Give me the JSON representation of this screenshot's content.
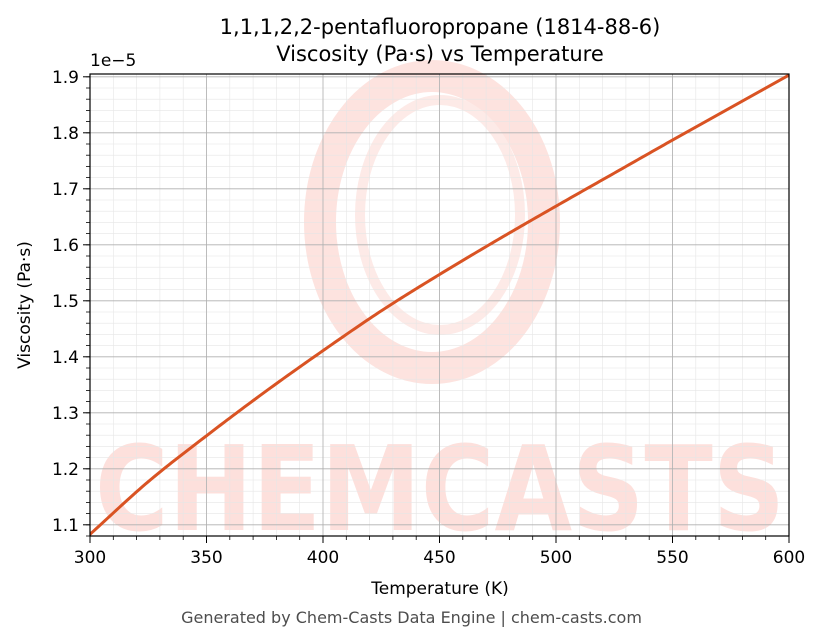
{
  "chart_data": {
    "type": "line",
    "title": "1,1,1,2,2-pentafluoropropane (1814-88-6)",
    "subtitle": "Viscosity (Pa·s) vs Temperature",
    "xlabel": "Temperature (K)",
    "ylabel": "Viscosity (Pa·s)",
    "y_offset_label": "1e−5",
    "xlim": [
      300,
      600
    ],
    "ylim": [
      1.08,
      1.905
    ],
    "x_ticks": [
      300,
      350,
      400,
      450,
      500,
      550,
      600
    ],
    "x_tick_labels": [
      "300",
      "350",
      "400",
      "450",
      "500",
      "550",
      "600"
    ],
    "y_ticks": [
      1.1,
      1.2,
      1.3,
      1.4,
      1.5,
      1.6,
      1.7,
      1.8,
      1.9
    ],
    "y_tick_labels": [
      "1.1",
      "1.2",
      "1.3",
      "1.4",
      "1.5",
      "1.6",
      "1.7",
      "1.8",
      "1.9"
    ],
    "grid": true,
    "series": [
      {
        "color": "#d95323",
        "x": [
          300,
          325,
          350,
          375,
          400,
          425,
          450,
          475,
          500,
          525,
          550,
          575,
          600
        ],
        "y": [
          1.083,
          1.177,
          1.259,
          1.337,
          1.411,
          1.482,
          1.547,
          1.609,
          1.669,
          1.728,
          1.787,
          1.845,
          1.903
        ]
      }
    ]
  },
  "watermark": {
    "text": "CHEMCASTS",
    "color": "#fde0dc"
  },
  "footer": "Generated by Chem-Casts Data Engine | chem-casts.com"
}
